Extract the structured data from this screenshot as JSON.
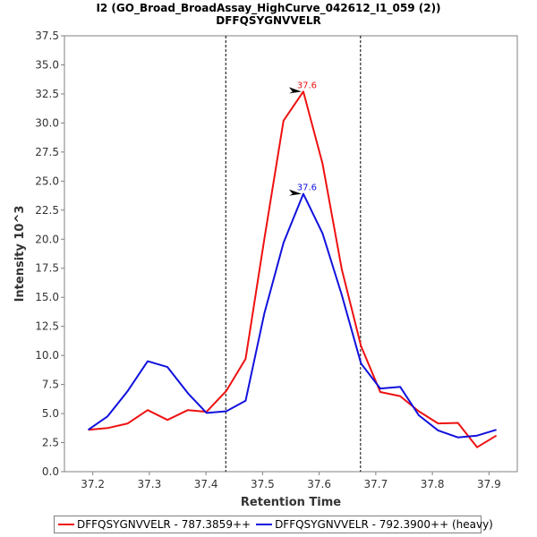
{
  "chart_data": {
    "type": "line",
    "title": "I2 (GO_Broad_BroadAssay_HighCurve_042612_I1_059 (2))",
    "subtitle": "DFFQSYGNVVELR",
    "xlabel": "Retention Time",
    "ylabel": "Intensity 10^3",
    "xlim": [
      37.15,
      37.95
    ],
    "ylim": [
      0,
      37.5
    ],
    "x_ticks": [
      "37.2",
      "37.3",
      "37.4",
      "37.5",
      "37.6",
      "37.7",
      "37.8",
      "37.9"
    ],
    "y_ticks": [
      "0.0",
      "2.5",
      "5.0",
      "7.5",
      "10.0",
      "12.5",
      "15.0",
      "17.5",
      "20.0",
      "22.5",
      "25.0",
      "27.5",
      "30.0",
      "32.5",
      "35.0",
      "37.5"
    ],
    "grid": false,
    "legend_position": "bottom",
    "boundaries": [
      37.435,
      37.673
    ],
    "series": [
      {
        "name": "DFFQSYGNVVELR - 787.3859++",
        "color": "#ee1111",
        "x": [
          37.192,
          37.226,
          37.262,
          37.297,
          37.332,
          37.368,
          37.401,
          37.436,
          37.47,
          37.503,
          37.537,
          37.572,
          37.606,
          37.64,
          37.674,
          37.708,
          37.743,
          37.776,
          37.81,
          37.845,
          37.879,
          37.913
        ],
        "y": [
          3.6,
          3.75,
          4.15,
          5.3,
          4.45,
          5.3,
          5.15,
          6.95,
          9.7,
          20.0,
          30.2,
          32.7,
          26.5,
          17.4,
          10.8,
          6.85,
          6.5,
          5.2,
          4.15,
          4.2,
          2.1,
          3.1
        ]
      },
      {
        "name": "DFFQSYGNVVELR - 792.3900++ (heavy)",
        "color": "#1111dd",
        "x": [
          37.192,
          37.226,
          37.262,
          37.297,
          37.332,
          37.368,
          37.401,
          37.436,
          37.47,
          37.503,
          37.537,
          37.572,
          37.606,
          37.64,
          37.674,
          37.708,
          37.743,
          37.776,
          37.81,
          37.845,
          37.879,
          37.913
        ],
        "y": [
          3.6,
          4.75,
          6.95,
          9.5,
          9.0,
          6.75,
          5.05,
          5.2,
          6.1,
          13.6,
          19.7,
          23.9,
          20.5,
          15.2,
          9.3,
          7.15,
          7.3,
          4.85,
          3.55,
          2.95,
          3.1,
          3.6
        ]
      }
    ],
    "annotations": [
      {
        "text": "37.6",
        "x": 37.572,
        "y": 32.7,
        "color": "#ee1111"
      },
      {
        "text": "37.6",
        "x": 37.572,
        "y": 23.9,
        "color": "#1111dd"
      }
    ]
  }
}
